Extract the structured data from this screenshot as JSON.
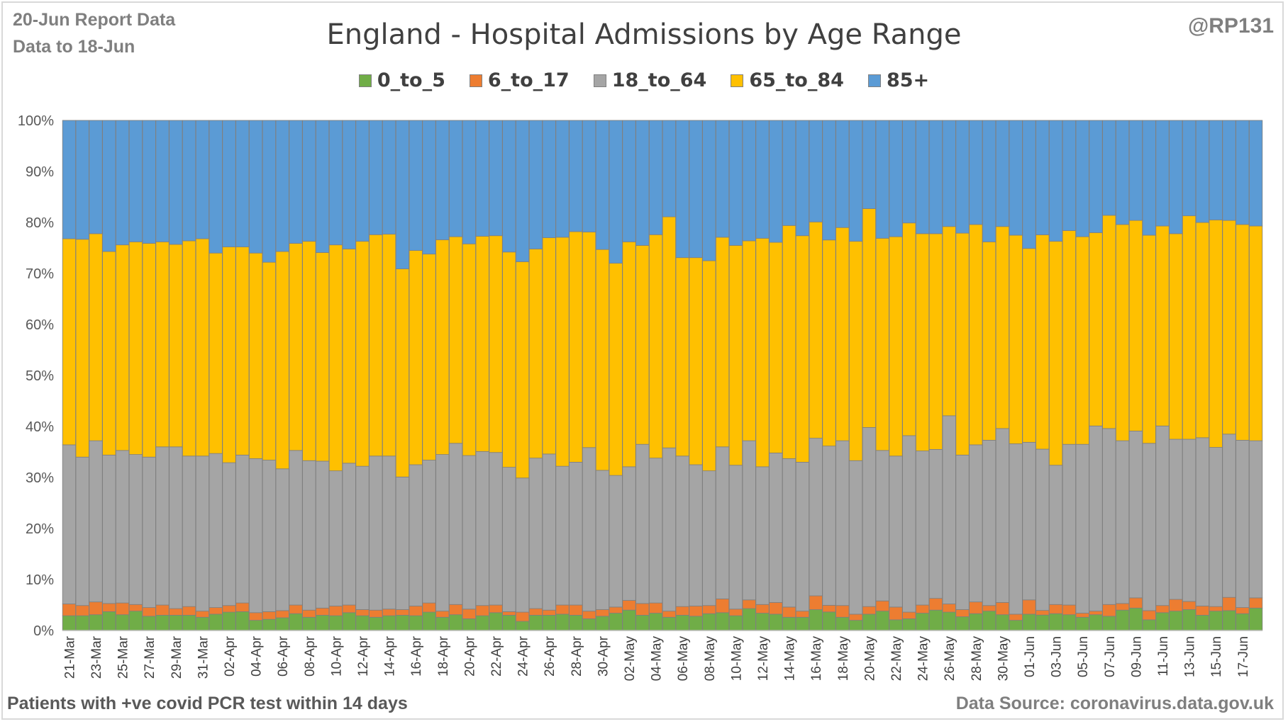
{
  "header": {
    "report_date": "20-Jun Report Data",
    "data_to": "Data to 18-Jun",
    "handle": "@RP131"
  },
  "footer": {
    "note": "Patients with  +ve covid PCR test within 14 days",
    "source": "Data Source: coronavirus.data.gov.uk"
  },
  "colors": {
    "0_to_5": "#70ad47",
    "6_to_17": "#ed7d31",
    "18_to_64": "#a5a5a5",
    "65_to_84": "#ffc000",
    "85+": "#5b9bd5"
  },
  "chart_data": {
    "type": "bar",
    "stacked": true,
    "percent": true,
    "title": "England - Hospital Admissions by Age Range",
    "xlabel": "",
    "ylabel": "",
    "ylim": [
      0,
      100
    ],
    "y_ticks": [
      "0%",
      "10%",
      "20%",
      "30%",
      "40%",
      "50%",
      "60%",
      "70%",
      "80%",
      "90%",
      "100%"
    ],
    "grid": true,
    "legend_position": "top",
    "categories": [
      "21-Mar",
      "22-Mar",
      "23-Mar",
      "24-Mar",
      "25-Mar",
      "26-Mar",
      "27-Mar",
      "28-Mar",
      "29-Mar",
      "30-Mar",
      "31-Mar",
      "01-Apr",
      "02-Apr",
      "03-Apr",
      "04-Apr",
      "05-Apr",
      "06-Apr",
      "07-Apr",
      "08-Apr",
      "09-Apr",
      "10-Apr",
      "11-Apr",
      "12-Apr",
      "13-Apr",
      "14-Apr",
      "15-Apr",
      "16-Apr",
      "17-Apr",
      "18-Apr",
      "19-Apr",
      "20-Apr",
      "21-Apr",
      "22-Apr",
      "23-Apr",
      "24-Apr",
      "25-Apr",
      "26-Apr",
      "27-Apr",
      "28-Apr",
      "29-Apr",
      "30-Apr",
      "01-May",
      "02-May",
      "03-May",
      "04-May",
      "05-May",
      "06-May",
      "07-May",
      "08-May",
      "09-May",
      "10-May",
      "11-May",
      "12-May",
      "13-May",
      "14-May",
      "15-May",
      "16-May",
      "17-May",
      "18-May",
      "19-May",
      "20-May",
      "21-May",
      "22-May",
      "23-May",
      "24-May",
      "25-May",
      "26-May",
      "27-May",
      "28-May",
      "29-May",
      "30-May",
      "31-May",
      "01-Jun",
      "02-Jun",
      "03-Jun",
      "04-Jun",
      "05-Jun",
      "06-Jun",
      "07-Jun",
      "08-Jun",
      "09-Jun",
      "10-Jun",
      "11-Jun",
      "12-Jun",
      "13-Jun",
      "14-Jun",
      "15-Jun",
      "16-Jun",
      "17-Jun",
      "18-Jun"
    ],
    "x_tick_labels": [
      "21-Mar",
      "",
      "23-Mar",
      "",
      "25-Mar",
      "",
      "27-Mar",
      "",
      "29-Mar",
      "",
      "31-Mar",
      "",
      "02-Apr",
      "",
      "04-Apr",
      "",
      "06-Apr",
      "",
      "08-Apr",
      "",
      "10-Apr",
      "",
      "12-Apr",
      "",
      "14-Apr",
      "",
      "16-Apr",
      "",
      "18-Apr",
      "",
      "20-Apr",
      "",
      "22-Apr",
      "",
      "24-Apr",
      "",
      "26-Apr",
      "",
      "28-Apr",
      "",
      "30-Apr",
      "",
      "02-May",
      "",
      "04-May",
      "",
      "06-May",
      "",
      "08-May",
      "",
      "10-May",
      "",
      "12-May",
      "",
      "14-May",
      "",
      "16-May",
      "",
      "18-May",
      "",
      "20-May",
      "",
      "22-May",
      "",
      "24-May",
      "",
      "26-May",
      "",
      "28-May",
      "",
      "30-May",
      "",
      "01-Jun",
      "",
      "03-Jun",
      "",
      "05-Jun",
      "",
      "07-Jun",
      "",
      "09-Jun",
      "",
      "11-Jun",
      "",
      "13-Jun",
      "",
      "15-Jun",
      "",
      "17-Jun",
      ""
    ],
    "series": [
      {
        "name": "0_to_5",
        "values": [
          2.9,
          2.9,
          3.1,
          3.7,
          3.1,
          3.8,
          2.8,
          3.0,
          3.0,
          3.0,
          2.6,
          3.2,
          3.6,
          3.7,
          2.0,
          2.2,
          2.5,
          3.3,
          2.6,
          3.0,
          2.9,
          3.5,
          2.9,
          2.6,
          2.9,
          3.0,
          2.9,
          3.6,
          2.6,
          3.1,
          2.3,
          2.9,
          3.5,
          3.0,
          1.8,
          3.0,
          3.0,
          3.2,
          3.0,
          2.3,
          2.8,
          3.4,
          4.0,
          3.0,
          3.4,
          2.6,
          3.0,
          2.8,
          3.3,
          3.5,
          2.9,
          4.3,
          3.4,
          3.2,
          2.6,
          2.6,
          4.1,
          3.6,
          2.6,
          2.0,
          3.2,
          3.8,
          2.1,
          2.3,
          3.4,
          4.0,
          3.6,
          2.7,
          3.3,
          3.8,
          3.1,
          2.0,
          3.2,
          3.0,
          3.3,
          3.1,
          2.6,
          3.1,
          2.8,
          4.0,
          4.4,
          2.1,
          3.5,
          3.8,
          4.1,
          3.0,
          3.8,
          3.9,
          3.3,
          4.4
        ]
      },
      {
        "name": "6_to_17",
        "values": [
          2.3,
          2.0,
          2.5,
          1.6,
          2.3,
          1.3,
          1.7,
          2.0,
          1.3,
          1.7,
          1.2,
          1.3,
          1.3,
          1.7,
          1.5,
          1.5,
          1.4,
          1.7,
          1.4,
          1.4,
          1.9,
          1.5,
          1.2,
          1.4,
          1.3,
          1.1,
          1.9,
          1.8,
          1.2,
          2.0,
          1.9,
          2.0,
          1.5,
          0.7,
          1.8,
          1.3,
          1.0,
          1.8,
          2.0,
          1.5,
          1.3,
          1.2,
          1.9,
          2.3,
          2.0,
          1.2,
          1.7,
          2.0,
          1.6,
          2.7,
          1.3,
          1.7,
          1.7,
          2.3,
          2.0,
          1.2,
          2.7,
          1.3,
          2.3,
          1.2,
          1.5,
          2.0,
          2.5,
          1.3,
          1.6,
          2.3,
          1.6,
          1.4,
          2.3,
          1.1,
          2.4,
          1.2,
          2.8,
          0.9,
          1.8,
          1.9,
          0.8,
          0.7,
          2.3,
          1.3,
          2.0,
          1.8,
          1.4,
          2.3,
          1.6,
          1.8,
          0.9,
          2.6,
          1.2,
          2.0
        ]
      },
      {
        "name": "18_to_64",
        "values": [
          31.2,
          29.1,
          31.6,
          29.1,
          29.9,
          29.4,
          29.5,
          31.0,
          31.7,
          29.5,
          30.4,
          30.2,
          28.0,
          29.0,
          30.2,
          29.7,
          27.8,
          30.3,
          29.3,
          28.8,
          26.5,
          27.8,
          28.1,
          30.2,
          30.0,
          26.0,
          27.7,
          28.0,
          30.7,
          31.6,
          30.1,
          30.2,
          29.9,
          28.3,
          26.3,
          29.5,
          30.6,
          27.2,
          28.0,
          32.1,
          27.3,
          25.8,
          26.2,
          31.2,
          28.4,
          32.0,
          29.5,
          27.7,
          26.4,
          29.8,
          28.2,
          31.2,
          27.0,
          29.3,
          29.1,
          29.2,
          30.9,
          30.9,
          32.3,
          30.1,
          35.1,
          29.5,
          29.6,
          34.6,
          30.2,
          29.2,
          36.9,
          30.3,
          30.8,
          32.4,
          34.1,
          33.4,
          30.9,
          31.3,
          27.3,
          31.5,
          33.1,
          36.3,
          34.5,
          31.9,
          32.7,
          32.8,
          35.2,
          31.4,
          31.8,
          33.0,
          31.2,
          32.0,
          32.8,
          30.8
        ]
      },
      {
        "name": "65_to_84",
        "values": [
          40.4,
          42.7,
          40.6,
          39.9,
          40.3,
          41.7,
          41.9,
          40.2,
          39.7,
          42.2,
          42.6,
          39.3,
          42.3,
          40.8,
          40.3,
          38.8,
          42.6,
          40.6,
          43.0,
          40.9,
          44.3,
          42.0,
          44.1,
          43.4,
          43.5,
          40.8,
          42.0,
          40.4,
          42.1,
          40.5,
          41.5,
          42.2,
          42.5,
          42.2,
          42.4,
          41.0,
          42.4,
          44.9,
          45.2,
          42.3,
          43.3,
          41.6,
          44.1,
          39.0,
          43.8,
          45.3,
          38.9,
          40.6,
          41.2,
          41.1,
          43.1,
          39.2,
          44.8,
          41.3,
          45.7,
          44.4,
          42.4,
          40.0,
          41.8,
          43.0,
          42.9,
          41.6,
          43.0,
          41.7,
          42.6,
          42.3,
          37.1,
          43.5,
          43.2,
          38.9,
          39.6,
          40.9,
          38.0,
          41.6,
          43.9,
          41.9,
          40.7,
          37.9,
          41.8,
          42.4,
          41.3,
          40.8,
          39.2,
          40.3,
          43.8,
          42.2,
          44.6,
          41.9,
          42.3,
          42.1
        ]
      },
      {
        "name": "85+",
        "values": [
          23.2,
          23.3,
          22.2,
          25.7,
          24.4,
          23.8,
          24.1,
          23.8,
          24.3,
          23.6,
          23.2,
          26.0,
          24.8,
          24.8,
          26.0,
          27.8,
          25.7,
          24.1,
          23.7,
          25.9,
          24.4,
          25.2,
          23.7,
          22.4,
          22.3,
          29.1,
          25.5,
          26.2,
          23.4,
          22.8,
          24.2,
          22.7,
          22.6,
          25.8,
          27.7,
          25.2,
          23.0,
          22.9,
          21.8,
          21.9,
          25.3,
          28.0,
          23.8,
          24.5,
          22.4,
          18.9,
          26.9,
          26.9,
          27.5,
          22.9,
          24.5,
          23.6,
          23.1,
          23.9,
          20.6,
          22.6,
          19.9,
          23.2,
          21.0,
          23.7,
          17.3,
          23.1,
          22.8,
          20.1,
          22.2,
          22.2,
          20.8,
          22.1,
          20.4,
          23.8,
          20.8,
          22.5,
          25.1,
          22.2,
          23.7,
          21.6,
          22.8,
          22.0,
          18.6,
          20.4,
          19.6,
          22.5,
          20.7,
          22.2,
          18.7,
          20.0,
          19.5,
          19.6,
          20.4,
          20.7
        ]
      }
    ]
  }
}
